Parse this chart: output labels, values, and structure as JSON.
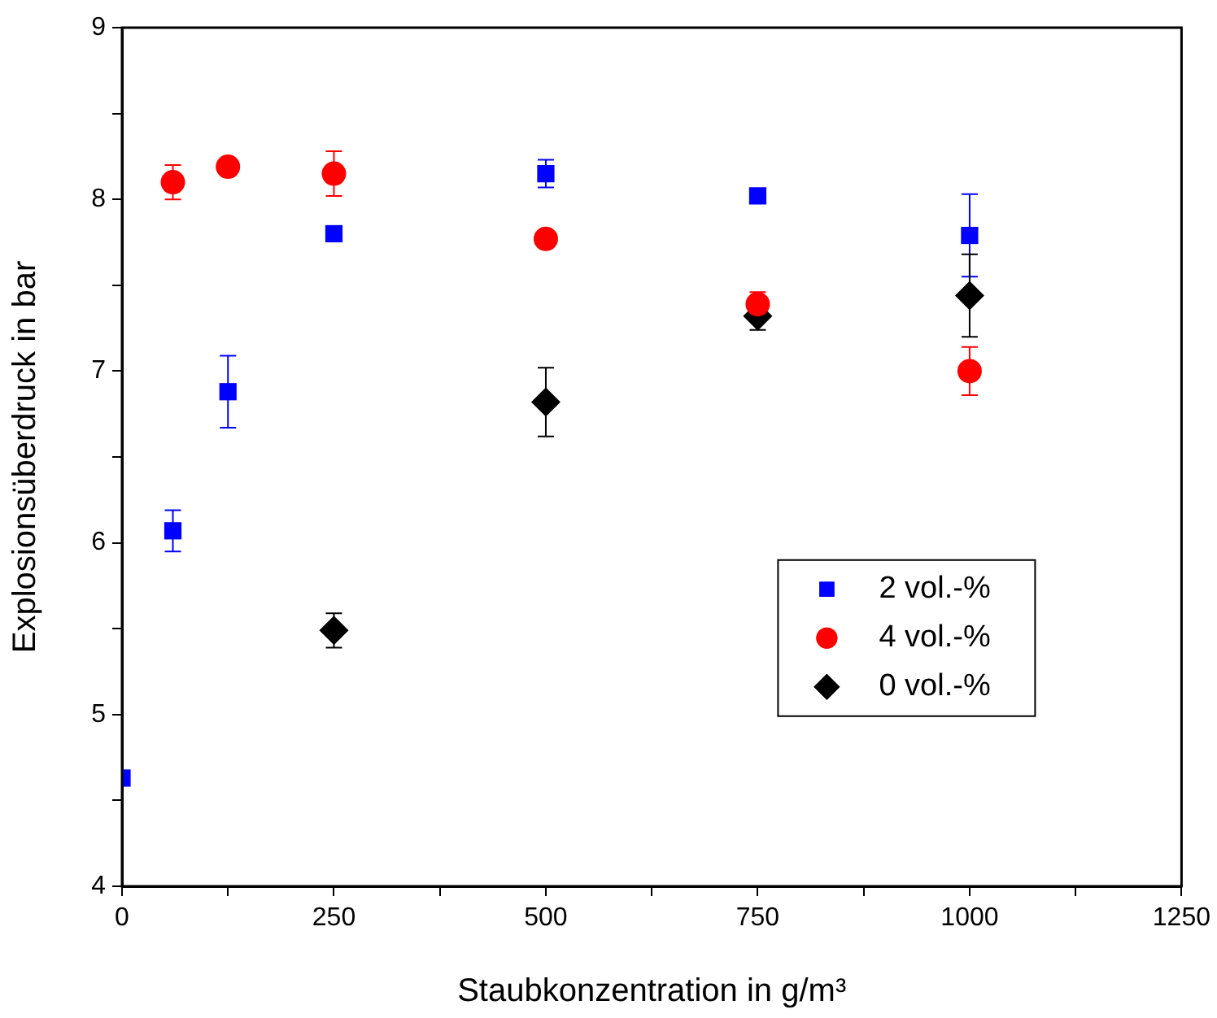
{
  "chart_data": {
    "type": "scatter",
    "xlabel": "Staubkonzentration in g/m³",
    "ylabel": "Explosionsüberdruck in bar",
    "xlim": [
      0,
      1250
    ],
    "ylim": [
      4,
      9
    ],
    "xticks": [
      0,
      {
        "value": 125,
        "label": null
      },
      250,
      {
        "value": 375,
        "label": null
      },
      500,
      {
        "value": 625,
        "label": null
      },
      750,
      {
        "value": 875,
        "label": null
      },
      1000,
      {
        "value": 1125,
        "label": null
      },
      1250
    ],
    "yticks": [
      4,
      {
        "value": 4.5,
        "label": null
      },
      5,
      {
        "value": 5.5,
        "label": null
      },
      6,
      {
        "value": 6.5,
        "label": null
      },
      7,
      {
        "value": 7.5,
        "label": null
      },
      8,
      {
        "value": 8.5,
        "label": null
      },
      9
    ],
    "grid": false,
    "legend": "right",
    "series": [
      {
        "name": "2 vol.-%",
        "color": "#0000ff",
        "marker": "square",
        "x": [
          0,
          60,
          125,
          250,
          500,
          750,
          1000
        ],
        "values": [
          4.63,
          6.07,
          6.88,
          7.8,
          8.15,
          8.02,
          7.79
        ],
        "errors": [
          null,
          0.12,
          0.21,
          null,
          0.08,
          null,
          0.24
        ]
      },
      {
        "name": "4 vol.-%",
        "color": "#ff0000",
        "marker": "circle",
        "x": [
          60,
          125,
          250,
          500,
          750,
          1000
        ],
        "values": [
          8.1,
          8.19,
          8.15,
          7.77,
          7.39,
          7.0
        ],
        "errors": [
          0.1,
          null,
          0.13,
          null,
          0.07,
          0.14
        ]
      },
      {
        "name": "0 vol.-%",
        "color": "#000000",
        "marker": "diamond",
        "x": [
          250,
          500,
          750,
          1000
        ],
        "values": [
          5.49,
          6.82,
          7.32,
          7.44
        ],
        "errors": [
          0.1,
          0.2,
          0.08,
          0.24
        ]
      }
    ]
  }
}
